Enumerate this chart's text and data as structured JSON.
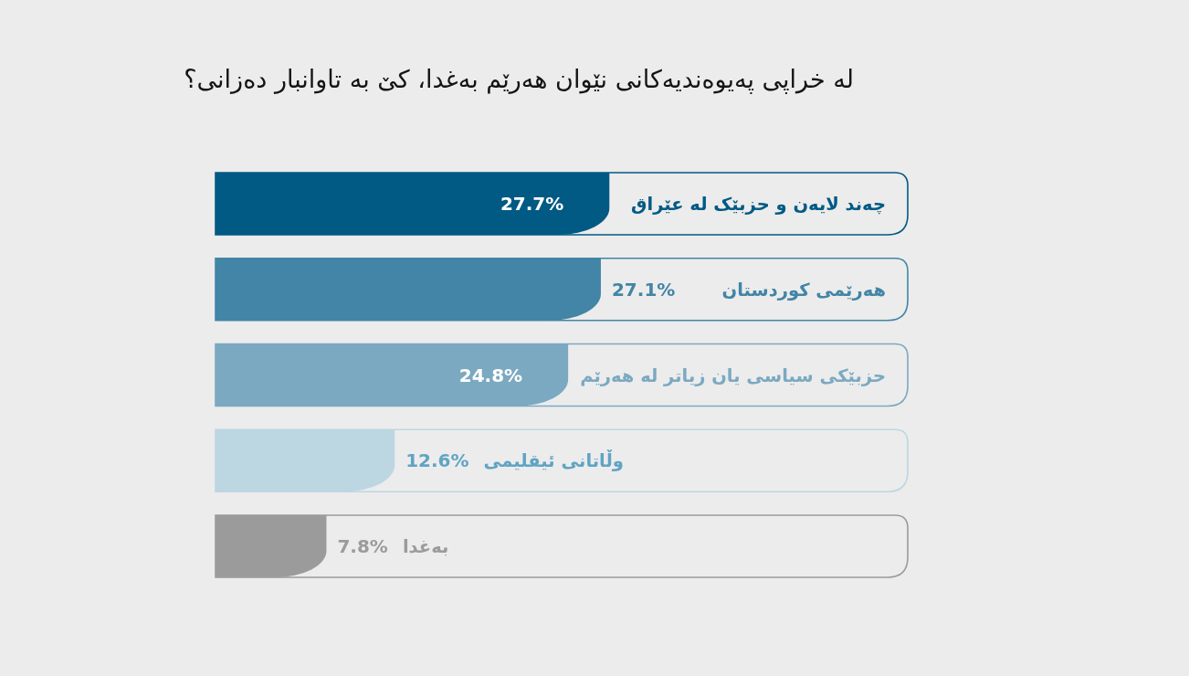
{
  "chart_data": {
    "type": "bar",
    "orientation": "horizontal",
    "title": "لە خراپی پەیوەندیەکانی نێوان هەرێم بەغدا، کێ بە تاوانبار دەزانی؟",
    "categories": [
      "چەند لایەن و حزبێک لە عێراق",
      "هەرێمی کوردستان",
      "حزبێکی سیاسی یان زیاتر لە هەرێم",
      "وڵاتانی ئیقلیمی",
      "بەغدا"
    ],
    "values": [
      27.7,
      27.1,
      24.8,
      12.6,
      7.8
    ],
    "colors": [
      "#005a84",
      "#4285a6",
      "#7ba9c1",
      "#bcd6e2",
      "#9b9b9b"
    ],
    "value_labels": [
      "27.7%",
      "27.1%",
      "24.8%",
      "12.6%",
      "7.8%"
    ]
  }
}
